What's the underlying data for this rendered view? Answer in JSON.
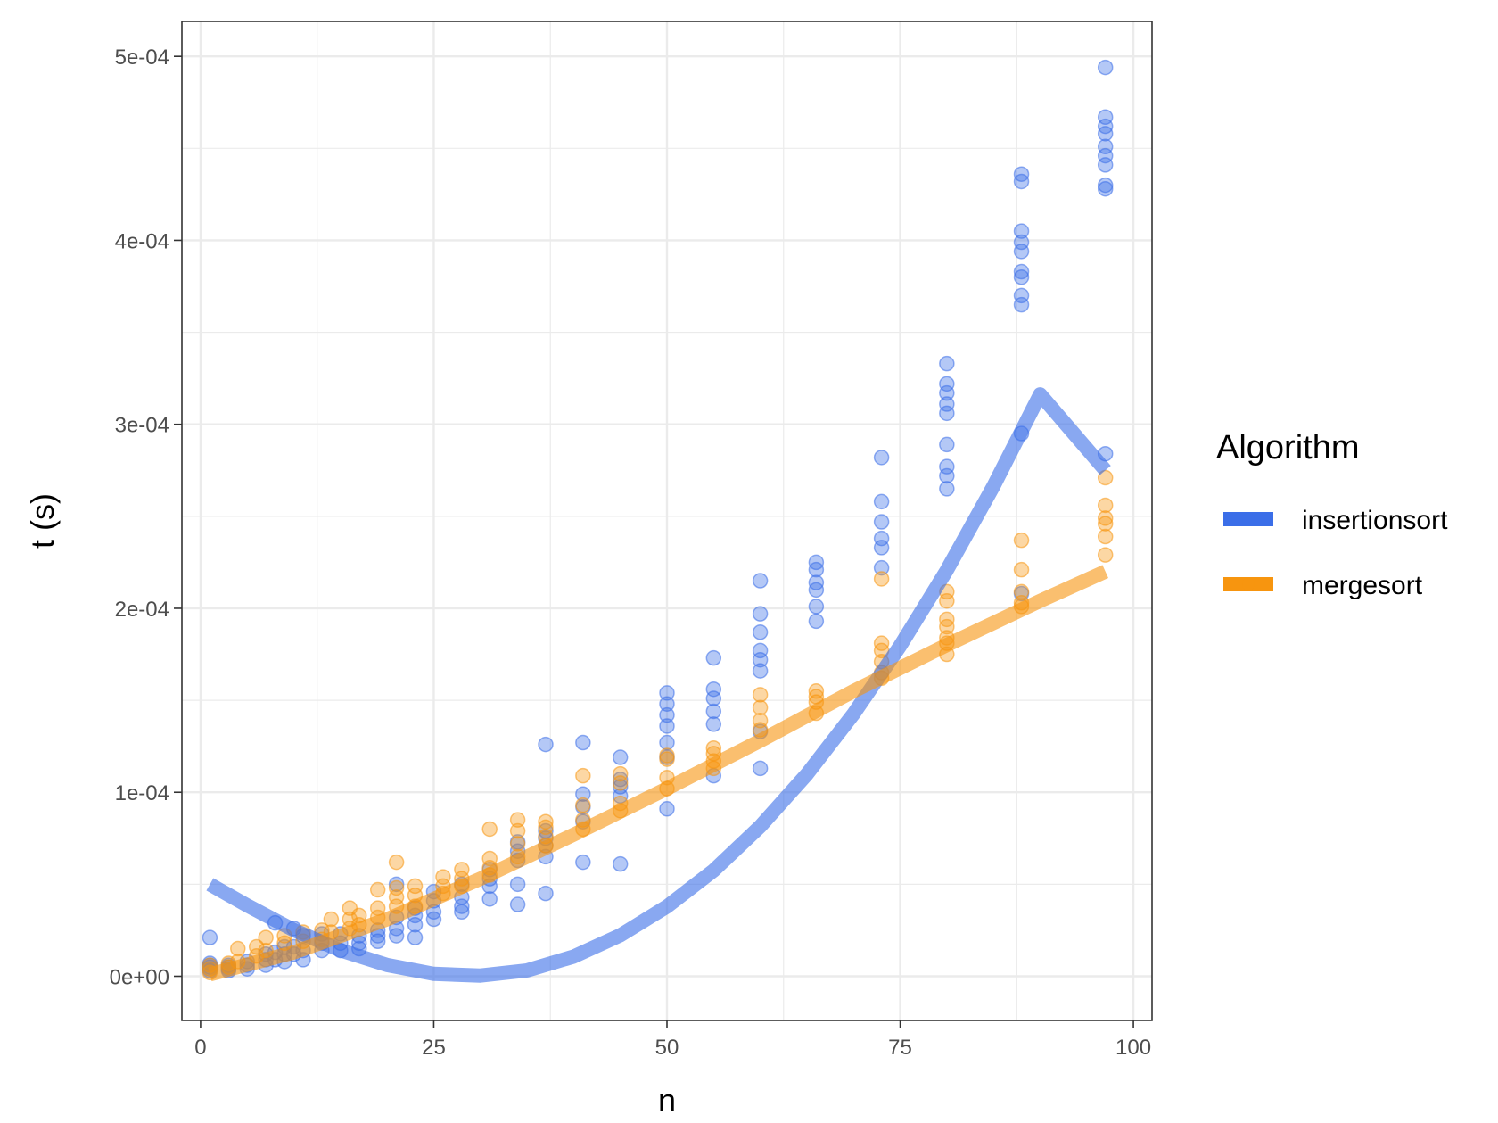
{
  "chart_data": {
    "type": "scatter",
    "xlabel": "n",
    "ylabel": "t (s)",
    "xlim": [
      -2,
      102
    ],
    "ylim": [
      -2.4e-05,
      0.000519
    ],
    "x_ticks": [
      0,
      25,
      50,
      75,
      100
    ],
    "x_tick_labels": [
      "0",
      "25",
      "50",
      "75",
      "100"
    ],
    "y_ticks": [
      0,
      0.0001,
      0.0002,
      0.0003,
      0.0004,
      0.0005
    ],
    "y_tick_labels": [
      "0e+00",
      "1e-04",
      "2e-04",
      "3e-04",
      "4e-04",
      "5e-04"
    ],
    "grid": true,
    "legend": {
      "title": "Algorithm",
      "position": "right",
      "items": [
        "insertionsort",
        "mergesort"
      ]
    },
    "series": [
      {
        "name": "insertionsort",
        "color": "#3b6ee8",
        "points": [
          [
            1,
            2.1e-05
          ],
          [
            1,
            7e-06
          ],
          [
            1,
            6e-06
          ],
          [
            1,
            5e-06
          ],
          [
            1,
            4e-06
          ],
          [
            1,
            3e-06
          ],
          [
            3,
            6e-06
          ],
          [
            3,
            5e-06
          ],
          [
            3,
            4e-06
          ],
          [
            3,
            3e-06
          ],
          [
            5,
            8e-06
          ],
          [
            5,
            6e-06
          ],
          [
            5,
            4e-06
          ],
          [
            7,
            1.2e-05
          ],
          [
            7,
            9e-06
          ],
          [
            7,
            6e-06
          ],
          [
            8,
            2.9e-05
          ],
          [
            8,
            1.3e-05
          ],
          [
            8,
            9e-06
          ],
          [
            9,
            1.6e-05
          ],
          [
            9,
            1.2e-05
          ],
          [
            9,
            8e-06
          ],
          [
            10,
            2.6e-05
          ],
          [
            10,
            1.6e-05
          ],
          [
            10,
            1.2e-05
          ],
          [
            11,
            2.2e-05
          ],
          [
            11,
            1.4e-05
          ],
          [
            11,
            9e-06
          ],
          [
            13,
            2.3e-05
          ],
          [
            13,
            1.8e-05
          ],
          [
            13,
            1.4e-05
          ],
          [
            15,
            2.3e-05
          ],
          [
            15,
            1.8e-05
          ],
          [
            15,
            1.4e-05
          ],
          [
            17,
            2.2e-05
          ],
          [
            17,
            1.8e-05
          ],
          [
            17,
            1.5e-05
          ],
          [
            19,
            2.5e-05
          ],
          [
            19,
            2.2e-05
          ],
          [
            19,
            1.9e-05
          ],
          [
            21,
            5e-05
          ],
          [
            21,
            3.2e-05
          ],
          [
            21,
            2.6e-05
          ],
          [
            21,
            2.2e-05
          ],
          [
            23,
            3.7e-05
          ],
          [
            23,
            3.3e-05
          ],
          [
            23,
            2.8e-05
          ],
          [
            23,
            2.1e-05
          ],
          [
            25,
            4.6e-05
          ],
          [
            25,
            4.1e-05
          ],
          [
            25,
            3.5e-05
          ],
          [
            25,
            3.1e-05
          ],
          [
            28,
            5e-05
          ],
          [
            28,
            4.3e-05
          ],
          [
            28,
            3.8e-05
          ],
          [
            28,
            3.5e-05
          ],
          [
            31,
            5.8e-05
          ],
          [
            31,
            5.3e-05
          ],
          [
            31,
            4.9e-05
          ],
          [
            31,
            4.2e-05
          ],
          [
            34,
            7.3e-05
          ],
          [
            34,
            6.8e-05
          ],
          [
            34,
            6.3e-05
          ],
          [
            34,
            5e-05
          ],
          [
            34,
            3.9e-05
          ],
          [
            37,
            0.000126
          ],
          [
            37,
            7.9e-05
          ],
          [
            37,
            7.5e-05
          ],
          [
            37,
            7.1e-05
          ],
          [
            37,
            6.5e-05
          ],
          [
            37,
            4.5e-05
          ],
          [
            41,
            0.000127
          ],
          [
            41,
            9.9e-05
          ],
          [
            41,
            9.2e-05
          ],
          [
            41,
            8.4e-05
          ],
          [
            41,
            6.2e-05
          ],
          [
            45,
            0.000119
          ],
          [
            45,
            0.000107
          ],
          [
            45,
            0.000103
          ],
          [
            45,
            9.8e-05
          ],
          [
            45,
            6.1e-05
          ],
          [
            50,
            0.000154
          ],
          [
            50,
            0.000148
          ],
          [
            50,
            0.000142
          ],
          [
            50,
            0.000136
          ],
          [
            50,
            0.000127
          ],
          [
            50,
            0.000119
          ],
          [
            50,
            9.1e-05
          ],
          [
            55,
            0.000173
          ],
          [
            55,
            0.000156
          ],
          [
            55,
            0.000151
          ],
          [
            55,
            0.000144
          ],
          [
            55,
            0.000137
          ],
          [
            55,
            0.000109
          ],
          [
            60,
            0.000215
          ],
          [
            60,
            0.000197
          ],
          [
            60,
            0.000187
          ],
          [
            60,
            0.000177
          ],
          [
            60,
            0.000172
          ],
          [
            60,
            0.000166
          ],
          [
            60,
            0.000133
          ],
          [
            60,
            0.000113
          ],
          [
            66,
            0.000225
          ],
          [
            66,
            0.000221
          ],
          [
            66,
            0.000214
          ],
          [
            66,
            0.00021
          ],
          [
            66,
            0.000201
          ],
          [
            66,
            0.000193
          ],
          [
            73,
            0.000282
          ],
          [
            73,
            0.000258
          ],
          [
            73,
            0.000247
          ],
          [
            73,
            0.000238
          ],
          [
            73,
            0.000233
          ],
          [
            73,
            0.000222
          ],
          [
            80,
            0.000333
          ],
          [
            80,
            0.000322
          ],
          [
            80,
            0.000317
          ],
          [
            80,
            0.000311
          ],
          [
            80,
            0.000306
          ],
          [
            80,
            0.000289
          ],
          [
            80,
            0.000277
          ],
          [
            80,
            0.000272
          ],
          [
            80,
            0.000265
          ],
          [
            88,
            0.000436
          ],
          [
            88,
            0.000432
          ],
          [
            88,
            0.000405
          ],
          [
            88,
            0.000399
          ],
          [
            88,
            0.000394
          ],
          [
            88,
            0.000383
          ],
          [
            88,
            0.00038
          ],
          [
            88,
            0.00037
          ],
          [
            88,
            0.000365
          ],
          [
            88,
            0.000295
          ],
          [
            88,
            0.000208
          ],
          [
            97,
            0.000494
          ],
          [
            97,
            0.000467
          ],
          [
            97,
            0.000462
          ],
          [
            97,
            0.000458
          ],
          [
            97,
            0.000451
          ],
          [
            97,
            0.000446
          ],
          [
            97,
            0.000441
          ],
          [
            97,
            0.00043
          ],
          [
            97,
            0.000428
          ],
          [
            97,
            0.000284
          ]
        ],
        "fit": [
          [
            1,
            5e-05
          ],
          [
            5,
            3.85e-05
          ],
          [
            10,
            2.51e-05
          ],
          [
            15,
            1.41e-05
          ],
          [
            20,
            6.1e-06
          ],
          [
            25,
            1.3e-06
          ],
          [
            30,
            4e-07
          ],
          [
            35,
            3.2e-06
          ],
          [
            40,
            1.07e-05
          ],
          [
            45,
            2.23e-05
          ],
          [
            50,
            3.79e-05
          ],
          [
            55,
            5.75e-05
          ],
          [
            60,
            8.15e-05
          ],
          [
            65,
            0.0001098
          ],
          [
            70,
            0.0001426
          ],
          [
            75,
            0.0001796
          ],
          [
            80,
            0.0002207
          ],
          [
            85,
            0.0002664
          ],
          [
            90,
            0.0003163
          ],
          [
            97,
            0.000275
          ]
        ]
      },
      {
        "name": "mergesort",
        "color": "#f7950f",
        "points": [
          [
            1,
            6e-06
          ],
          [
            1,
            4e-06
          ],
          [
            1,
            2e-06
          ],
          [
            3,
            7e-06
          ],
          [
            3,
            5e-06
          ],
          [
            4,
            1.5e-05
          ],
          [
            4,
            8e-06
          ],
          [
            6,
            1.6e-05
          ],
          [
            6,
            1.1e-05
          ],
          [
            7,
            2.1e-05
          ],
          [
            7,
            1.4e-05
          ],
          [
            9,
            2.2e-05
          ],
          [
            9,
            1.8e-05
          ],
          [
            11,
            2.4e-05
          ],
          [
            11,
            1.9e-05
          ],
          [
            13,
            2.5e-05
          ],
          [
            13,
            2e-05
          ],
          [
            14,
            3.1e-05
          ],
          [
            14,
            2.4e-05
          ],
          [
            16,
            3.7e-05
          ],
          [
            16,
            3.1e-05
          ],
          [
            16,
            2.6e-05
          ],
          [
            17,
            3.3e-05
          ],
          [
            17,
            2.8e-05
          ],
          [
            19,
            4.7e-05
          ],
          [
            19,
            3.7e-05
          ],
          [
            19,
            3.2e-05
          ],
          [
            21,
            6.2e-05
          ],
          [
            21,
            4.8e-05
          ],
          [
            21,
            4.3e-05
          ],
          [
            21,
            3.8e-05
          ],
          [
            23,
            4.9e-05
          ],
          [
            23,
            4.4e-05
          ],
          [
            23,
            3.8e-05
          ],
          [
            26,
            5.4e-05
          ],
          [
            26,
            4.9e-05
          ],
          [
            26,
            4.5e-05
          ],
          [
            28,
            5.8e-05
          ],
          [
            28,
            5.3e-05
          ],
          [
            28,
            4.9e-05
          ],
          [
            31,
            8e-05
          ],
          [
            31,
            6.4e-05
          ],
          [
            31,
            5.9e-05
          ],
          [
            31,
            5.5e-05
          ],
          [
            34,
            8.5e-05
          ],
          [
            34,
            7.9e-05
          ],
          [
            34,
            7.2e-05
          ],
          [
            34,
            6.5e-05
          ],
          [
            37,
            8.4e-05
          ],
          [
            37,
            8.1e-05
          ],
          [
            37,
            7.6e-05
          ],
          [
            37,
            7.1e-05
          ],
          [
            41,
            0.000109
          ],
          [
            41,
            9.3e-05
          ],
          [
            41,
            8.5e-05
          ],
          [
            41,
            8e-05
          ],
          [
            45,
            0.00011
          ],
          [
            45,
            0.000105
          ],
          [
            45,
            9.4e-05
          ],
          [
            45,
            9e-05
          ],
          [
            50,
            0.00012
          ],
          [
            50,
            0.000118
          ],
          [
            50,
            0.000108
          ],
          [
            50,
            0.000102
          ],
          [
            55,
            0.000124
          ],
          [
            55,
            0.000121
          ],
          [
            55,
            0.000117
          ],
          [
            55,
            0.000113
          ],
          [
            60,
            0.000153
          ],
          [
            60,
            0.000146
          ],
          [
            60,
            0.000139
          ],
          [
            60,
            0.000134
          ],
          [
            66,
            0.000155
          ],
          [
            66,
            0.000152
          ],
          [
            66,
            0.000149
          ],
          [
            66,
            0.000143
          ],
          [
            73,
            0.000216
          ],
          [
            73,
            0.000181
          ],
          [
            73,
            0.000177
          ],
          [
            73,
            0.000171
          ],
          [
            73,
            0.000165
          ],
          [
            73,
            0.000162
          ],
          [
            80,
            0.000209
          ],
          [
            80,
            0.000204
          ],
          [
            80,
            0.000194
          ],
          [
            80,
            0.00019
          ],
          [
            80,
            0.000184
          ],
          [
            80,
            0.000181
          ],
          [
            80,
            0.000175
          ],
          [
            88,
            0.000237
          ],
          [
            88,
            0.000221
          ],
          [
            88,
            0.000209
          ],
          [
            88,
            0.000203
          ],
          [
            88,
            0.000201
          ],
          [
            97,
            0.000271
          ],
          [
            97,
            0.000256
          ],
          [
            97,
            0.000249
          ],
          [
            97,
            0.000246
          ],
          [
            97,
            0.000239
          ],
          [
            97,
            0.000229
          ]
        ],
        "fit": [
          [
            1,
            1e-06
          ],
          [
            10,
            1.3e-05
          ],
          [
            20,
            3.1e-05
          ],
          [
            30,
            5.3e-05
          ],
          [
            40,
            7.7e-05
          ],
          [
            50,
            0.000102
          ],
          [
            60,
            0.000128
          ],
          [
            70,
            0.000155
          ],
          [
            80,
            0.00018
          ],
          [
            90,
            0.000204
          ],
          [
            97,
            0.00022
          ]
        ]
      }
    ]
  }
}
